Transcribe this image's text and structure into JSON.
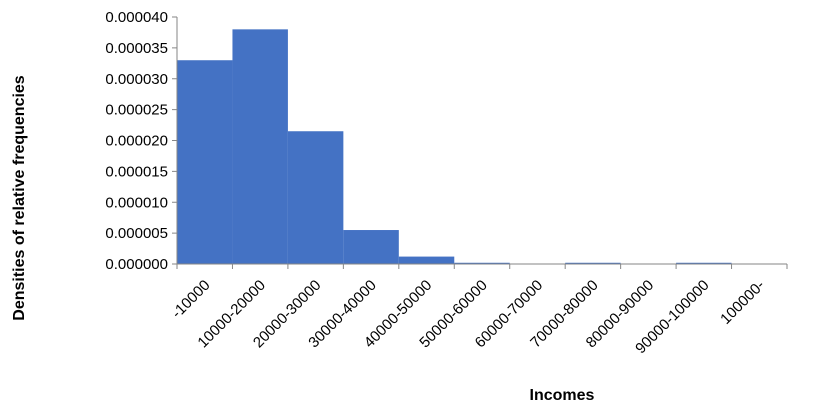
{
  "chart_data": {
    "type": "bar",
    "title": "",
    "xlabel": "Incomes",
    "ylabel": "Densities of relative frequencies",
    "categories": [
      "-10000",
      "10000-20000",
      "20000-30000",
      "30000-40000",
      "40000-50000",
      "50000-60000",
      "60000-70000",
      "70000-80000",
      "80000-90000",
      "90000-100000",
      "100000-"
    ],
    "values": [
      3.3e-05,
      3.8e-05,
      2.15e-05,
      5.5e-06,
      1.2e-06,
      2e-07,
      0,
      2e-07,
      0,
      2e-07,
      0
    ],
    "ylim": [
      0,
      4e-05
    ],
    "yticks": [
      0,
      5e-06,
      1e-05,
      1.5e-05,
      2e-05,
      2.5e-05,
      3e-05,
      3.5e-05,
      4e-05
    ],
    "ytick_labels": [
      "0.000000",
      "0.000005",
      "0.000010",
      "0.000015",
      "0.000020",
      "0.000025",
      "0.000030",
      "0.000035",
      "0.000040"
    ],
    "bar_color": "#4472c4",
    "grid": false,
    "legend": "none"
  }
}
